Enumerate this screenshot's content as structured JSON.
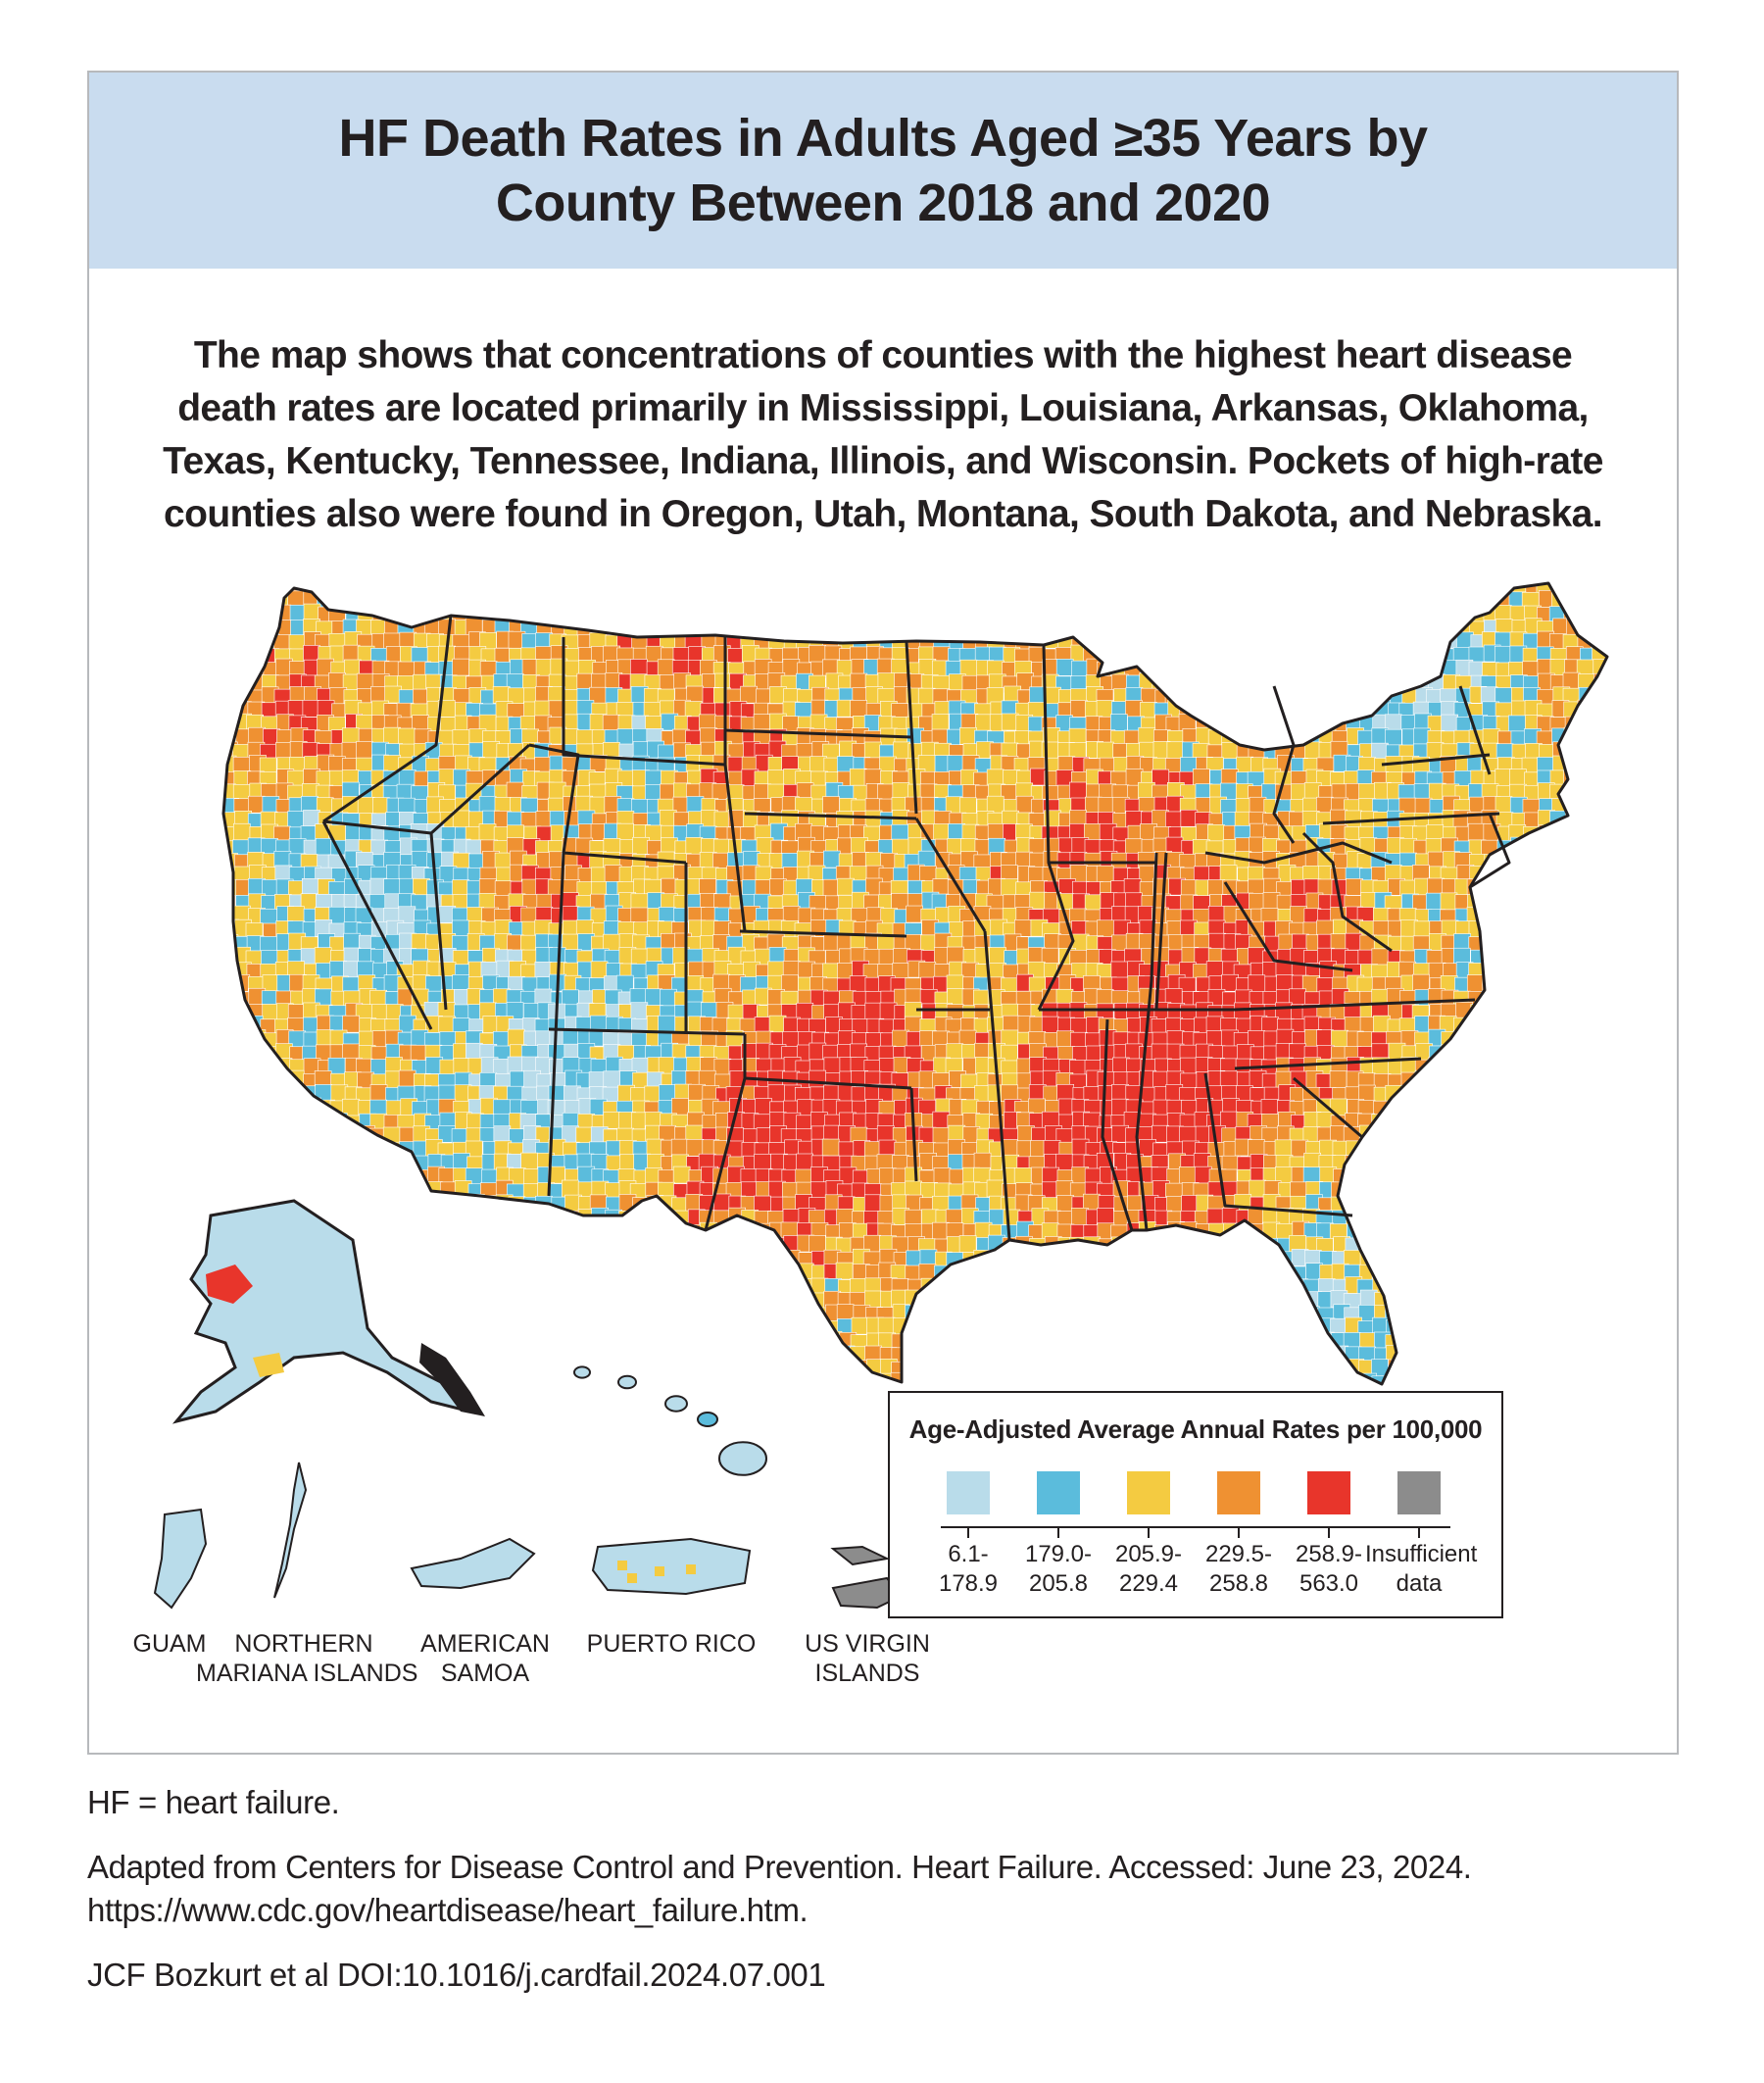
{
  "title": {
    "line1": "HF Death Rates in Adults Aged ≥35 Years by",
    "line2": "County Between 2018 and 2020"
  },
  "summary": {
    "line1": "The map shows that concentrations of counties with the highest heart disease",
    "line2": "death rates are located primarily in Mississippi, Louisiana, Arkansas, Oklahoma,",
    "line3": "Texas, Kentucky, Tennessee, Indiana, Illinois, and Wisconsin. Pockets of high-rate",
    "line4": "counties also were found in Oregon, Utah, Montana, South Dakota, and Nebraska."
  },
  "colors": {
    "band1": "#b9dcea",
    "band2": "#5bbcdc",
    "band3": "#f4cb41",
    "band4": "#ef9132",
    "band5": "#e8352b",
    "insufficient": "#8c8c8c",
    "border": "#231f20",
    "title_band": "#c9dcef"
  },
  "territories": {
    "guam": "GUAM",
    "nmi_line1": "NORTHERN",
    "nmi_line2": "MARIANA ISLANDS",
    "samoa_line1": "AMERICAN",
    "samoa_line2": "SAMOA",
    "puerto_rico": "PUERTO RICO",
    "usvi_line1": "US VIRGIN",
    "usvi_line2": "ISLANDS"
  },
  "legend": {
    "title": "Age-Adjusted Average Annual Rates per 100,000",
    "items": [
      {
        "line1": "6.1-",
        "line2": "178.9",
        "color": "#b9dcea"
      },
      {
        "line1": "179.0-",
        "line2": "205.8",
        "color": "#5bbcdc"
      },
      {
        "line1": "205.9-",
        "line2": "229.4",
        "color": "#f4cb41"
      },
      {
        "line1": "229.5-",
        "line2": "258.8",
        "color": "#ef9132"
      },
      {
        "line1": "258.9-",
        "line2": "563.0",
        "color": "#e8352b"
      },
      {
        "line1": "Insufficient",
        "line2": "data",
        "color": "#8c8c8c"
      }
    ]
  },
  "footnotes": {
    "abbrev": "HF = heart failure.",
    "source_line1": "Adapted from Centers for Disease Control and Prevention. Heart Failure. Accessed: June 23, 2024.",
    "source_line2": "https://www.cdc.gov/heartdisease/heart_failure.htm.",
    "citation": "JCF Bozkurt et al  DOI:10.1016/j.cardfail.2024.07.001"
  }
}
